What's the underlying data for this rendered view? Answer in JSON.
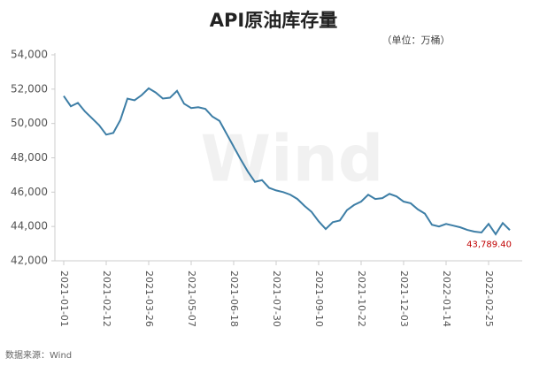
{
  "chart_data": {
    "type": "line",
    "title": "API原油库存量",
    "unit_note": "（单位：万桶）",
    "source": "数据来源：Wind",
    "watermark": "Wind",
    "categories": [
      "2021-01-01",
      null,
      null,
      null,
      null,
      null,
      "2021-02-12",
      null,
      null,
      null,
      null,
      null,
      "2021-03-26",
      null,
      null,
      null,
      null,
      null,
      "2021-05-07",
      null,
      null,
      null,
      null,
      null,
      "2021-06-18",
      null,
      null,
      null,
      null,
      null,
      "2021-07-30",
      null,
      null,
      null,
      null,
      null,
      "2021-09-10",
      null,
      null,
      null,
      null,
      null,
      "2021-10-22",
      null,
      null,
      null,
      null,
      null,
      "2021-12-03",
      null,
      null,
      null,
      null,
      null,
      "2022-01-14",
      null,
      null,
      null,
      null,
      null,
      "2022-02-25",
      null,
      null,
      null
    ],
    "series": [
      {
        "name": "API原油库存量",
        "color": "#3d7ea6",
        "values": [
          51600,
          51000,
          51200,
          50700,
          50300,
          49900,
          49350,
          49450,
          50200,
          51450,
          51350,
          51650,
          52050,
          51800,
          51450,
          51500,
          51900,
          51150,
          50900,
          50950,
          50850,
          50400,
          50150,
          49400,
          48650,
          47900,
          47200,
          46600,
          46700,
          46250,
          46100,
          46000,
          45850,
          45600,
          45200,
          44850,
          44300,
          43850,
          44250,
          44350,
          44950,
          45250,
          45450,
          45850,
          45600,
          45650,
          45900,
          45750,
          45450,
          45350,
          45000,
          44750,
          44100,
          44000,
          44150,
          44050,
          43950,
          43800,
          43700,
          43650,
          44150,
          43550,
          44200,
          43789.4
        ],
        "value_labels": [
          null,
          null,
          null,
          null,
          null,
          null,
          null,
          null,
          null,
          null,
          null,
          null,
          null,
          null,
          null,
          null,
          null,
          null,
          null,
          null,
          null,
          null,
          null,
          null,
          null,
          null,
          null,
          null,
          null,
          null,
          null,
          null,
          null,
          null,
          null,
          null,
          null,
          null,
          null,
          null,
          null,
          null,
          null,
          null,
          null,
          null,
          null,
          null,
          null,
          null,
          null,
          null,
          null,
          null,
          null,
          null,
          null,
          null,
          null,
          null,
          null,
          null,
          null,
          "43,789.40"
        ],
        "label_color": "#c00000"
      }
    ],
    "ylim": [
      42000,
      54000
    ],
    "yticks": [
      {
        "value": 42000,
        "label": "42,000"
      },
      {
        "value": 44000,
        "label": "44,000"
      },
      {
        "value": 46000,
        "label": "46,000"
      },
      {
        "value": 48000,
        "label": "48,000"
      },
      {
        "value": 50000,
        "label": "50,000"
      },
      {
        "value": 52000,
        "label": "52,000"
      },
      {
        "value": 54000,
        "label": "54,000"
      }
    ]
  }
}
